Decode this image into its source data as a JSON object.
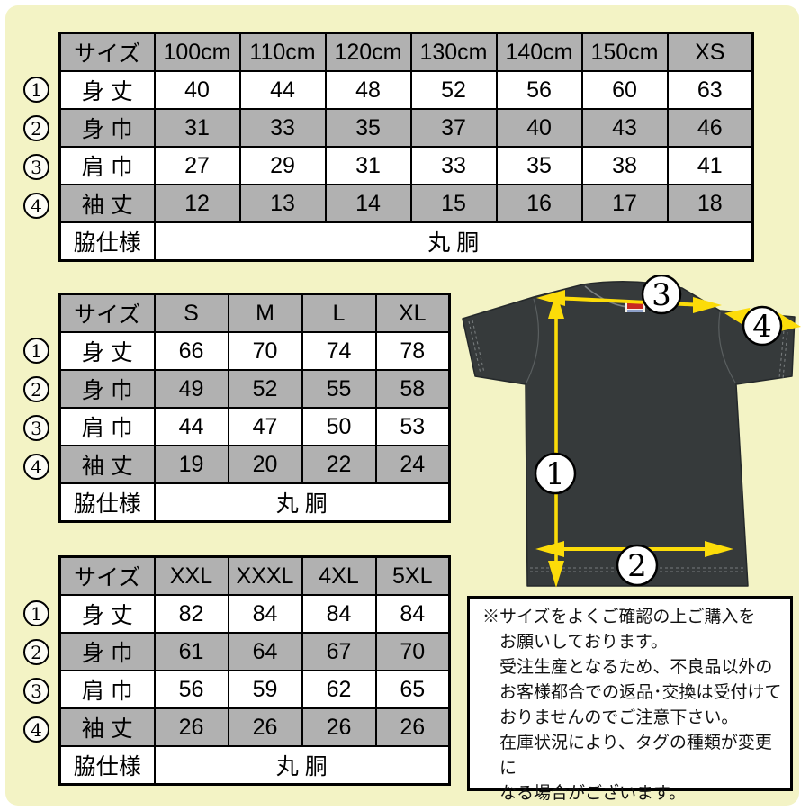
{
  "colors": {
    "page_background": "#f3f3c5",
    "table_header_gray": "#b1b1b1",
    "arrow_yellow": "#fcdc09",
    "shirt_charcoal": "#363a3b"
  },
  "tables": [
    {
      "id": "kids-xs",
      "size_header": "サイズ",
      "sizes": [
        "100cm",
        "110cm",
        "120cm",
        "130cm",
        "140cm",
        "150cm",
        "XS"
      ],
      "rows": [
        {
          "num": "1",
          "label": "身 丈",
          "values": [
            "40",
            "44",
            "48",
            "52",
            "56",
            "60",
            "63"
          ]
        },
        {
          "num": "2",
          "label": "身 巾",
          "values": [
            "31",
            "33",
            "35",
            "37",
            "40",
            "43",
            "46"
          ]
        },
        {
          "num": "3",
          "label": "肩 巾",
          "values": [
            "27",
            "29",
            "31",
            "33",
            "35",
            "38",
            "41"
          ]
        },
        {
          "num": "4",
          "label": "袖 丈",
          "values": [
            "12",
            "13",
            "14",
            "15",
            "16",
            "17",
            "18"
          ]
        }
      ],
      "footer_label": "脇仕様",
      "footer_value": "丸 胴"
    },
    {
      "id": "s-xl",
      "size_header": "サイズ",
      "sizes": [
        "S",
        "M",
        "L",
        "XL"
      ],
      "rows": [
        {
          "num": "1",
          "label": "身 丈",
          "values": [
            "66",
            "70",
            "74",
            "78"
          ]
        },
        {
          "num": "2",
          "label": "身 巾",
          "values": [
            "49",
            "52",
            "55",
            "58"
          ]
        },
        {
          "num": "3",
          "label": "肩 巾",
          "values": [
            "44",
            "47",
            "50",
            "53"
          ]
        },
        {
          "num": "4",
          "label": "袖 丈",
          "values": [
            "19",
            "20",
            "22",
            "24"
          ]
        }
      ],
      "footer_label": "脇仕様",
      "footer_value": "丸 胴"
    },
    {
      "id": "xxl-5xl",
      "size_header": "サイズ",
      "sizes": [
        "XXL",
        "XXXL",
        "4XL",
        "5XL"
      ],
      "rows": [
        {
          "num": "1",
          "label": "身 丈",
          "values": [
            "82",
            "84",
            "84",
            "84"
          ]
        },
        {
          "num": "2",
          "label": "身 巾",
          "values": [
            "61",
            "64",
            "67",
            "70"
          ]
        },
        {
          "num": "3",
          "label": "肩 巾",
          "values": [
            "56",
            "59",
            "62",
            "65"
          ]
        },
        {
          "num": "4",
          "label": "袖 丈",
          "values": [
            "26",
            "26",
            "26",
            "26"
          ]
        }
      ],
      "footer_label": "脇仕様",
      "footer_value": "丸 胴"
    }
  ],
  "diagram": {
    "badges": [
      "1",
      "2",
      "3",
      "4"
    ]
  },
  "notice": {
    "text": "※サイズをよくご確認の上ご購入を\nお願いしております。\n受注生産となるため、不良品以外の\nお客様都合での返品･交換は受付けて\nおりませんのでご注意下さい。\n在庫状況により、タグの種類が変更に\nなる場合がございます。"
  }
}
